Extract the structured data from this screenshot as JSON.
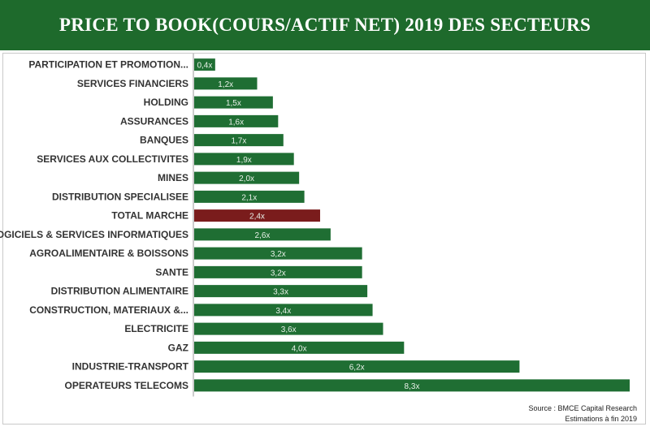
{
  "title": "PRICE TO BOOK(COURS/ACTIF NET) 2019 DES SECTEURS",
  "colors": {
    "banner": "#1e6a2c",
    "bar": "#1f6e33",
    "highlight": "#7a1c1c"
  },
  "source_line1": "Source : BMCE Capital Research",
  "source_line2": "Estimations à fin 2019",
  "chart_data": {
    "type": "bar",
    "orientation": "horizontal",
    "title": "PRICE TO BOOK(COURS/ACTIF NET) 2019 DES SECTEURS",
    "categories": [
      "PARTICIPATION ET PROMOTION...",
      "SERVICES FINANCIERS",
      "HOLDING",
      "ASSURANCES",
      "BANQUES",
      "SERVICES AUX COLLECTIVITES",
      "MINES",
      "DISTRIBUTION SPECIALISEE",
      "TOTAL MARCHE",
      "LOGICIELS & SERVICES INFORMATIQUES",
      "AGROALIMENTAIRE & BOISSONS",
      "SANTE",
      "DISTRIBUTION ALIMENTAIRE",
      "CONSTRUCTION, MATERIAUX &...",
      "ELECTRICITE",
      "GAZ",
      "INDUSTRIE-TRANSPORT",
      "OPERATEURS TELECOMS"
    ],
    "values": [
      0.4,
      1.2,
      1.5,
      1.6,
      1.7,
      1.9,
      2.0,
      2.1,
      2.4,
      2.6,
      3.2,
      3.2,
      3.3,
      3.4,
      3.6,
      4.0,
      6.2,
      8.3
    ],
    "value_labels": [
      "0,4x",
      "1,2x",
      "1,5x",
      "1,6x",
      "1,7x",
      "1,9x",
      "2,0x",
      "2,1x",
      "2,4x",
      "2,6x",
      "3,2x",
      "3,2x",
      "3,3x",
      "3,4x",
      "3,6x",
      "4,0x",
      "6,2x",
      "8,3x"
    ],
    "highlight_category": "TOTAL MARCHE",
    "xlim": [
      0,
      8.3
    ],
    "grid": false,
    "legend": "none"
  }
}
